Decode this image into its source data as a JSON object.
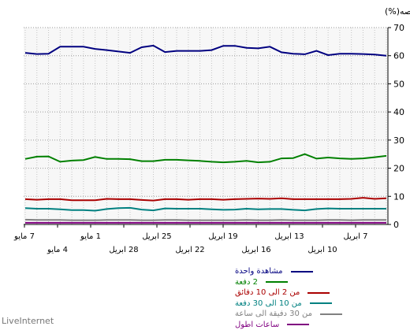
{
  "chart_data": {
    "type": "line",
    "ylabel": "الحصه(%)",
    "ylim": [
      0,
      70
    ],
    "yticks": [
      0,
      10,
      20,
      30,
      40,
      50,
      60,
      70
    ],
    "grid": true,
    "x_ticks_top": [
      "7 مايو",
      "1 مايو",
      "25 ابريل",
      "19 ابريل",
      "13 ابريل",
      "7 ابريل"
    ],
    "x_ticks_bottom": [
      "4 مايو",
      "28 ابريل",
      "22 ابريل",
      "16 ابريل",
      "10 ابريل"
    ],
    "n_points": 32,
    "series": [
      {
        "name": "مشاهدة واحدة",
        "color": "#000080",
        "values": [
          61,
          60.6,
          60.7,
          63.2,
          63.2,
          63.2,
          62.4,
          62,
          61.5,
          61,
          63,
          63.6,
          61.3,
          61.7,
          61.7,
          61.7,
          62,
          63.5,
          63.5,
          62.8,
          62.6,
          63.2,
          61.2,
          60.7,
          60.5,
          61.7,
          60.2,
          60.7,
          60.7,
          60.6,
          60.4,
          60
        ]
      },
      {
        "name": "2 دفعة",
        "color": "#008000",
        "values": [
          23.3,
          24.1,
          24.2,
          22.3,
          22.7,
          22.9,
          24,
          23.3,
          23.3,
          23.2,
          22.5,
          22.5,
          23,
          23,
          22.8,
          22.6,
          22.3,
          22.1,
          22.3,
          22.6,
          22.1,
          22.3,
          23.5,
          23.6,
          25,
          23.4,
          23.8,
          23.5,
          23.3,
          23.5,
          23.9,
          24.4
        ]
      },
      {
        "name": "من 2 الى 10 دفائق",
        "color": "#aa0000",
        "values": [
          9,
          8.8,
          9,
          9,
          8.6,
          8.6,
          8.6,
          9.1,
          9,
          9,
          8.7,
          8.5,
          9,
          9,
          8.8,
          9,
          9,
          8.8,
          9,
          9.1,
          9.2,
          9.1,
          9.3,
          9,
          9,
          9,
          9,
          9,
          9.1,
          9.5,
          9.1,
          9.3
        ]
      },
      {
        "name": "من 10  الى 30 دفعة",
        "color": "#008080",
        "values": [
          5.8,
          5.6,
          5.6,
          5.4,
          5.1,
          5.1,
          4.9,
          5.5,
          5.8,
          5.9,
          5.3,
          5,
          5.7,
          5.6,
          5.6,
          5.6,
          5.4,
          5.2,
          5.3,
          5.6,
          5.4,
          5.5,
          5.5,
          5.2,
          5,
          5.5,
          5.7,
          5.6,
          5.6,
          5.6,
          5.6,
          5.6
        ]
      },
      {
        "name": "من 30 دفيقة الى ساعة",
        "color": "#808080",
        "values": [
          1.7,
          1.6,
          1.6,
          1.6,
          1.5,
          1.5,
          1.5,
          1.6,
          1.6,
          1.6,
          1.5,
          1.5,
          1.6,
          1.6,
          1.5,
          1.5,
          1.5,
          1.5,
          1.5,
          1.6,
          1.5,
          1.5,
          1.6,
          1.5,
          1.5,
          1.5,
          1.6,
          1.6,
          1.5,
          1.6,
          1.6,
          1.6
        ]
      },
      {
        "name": "ساعات اطول",
        "color": "#800080",
        "values": [
          0.6,
          0.6,
          0.6,
          0.6,
          0.6,
          0.6,
          0.6,
          0.6,
          0.6,
          0.6,
          0.6,
          0.6,
          0.6,
          0.6,
          0.6,
          0.6,
          0.6,
          0.6,
          0.6,
          0.6,
          0.6,
          0.6,
          0.6,
          0.6,
          0.6,
          0.6,
          0.6,
          0.6,
          0.6,
          0.6,
          0.6,
          0.6
        ]
      }
    ]
  },
  "footer": {
    "brand": "LiveInternet"
  }
}
